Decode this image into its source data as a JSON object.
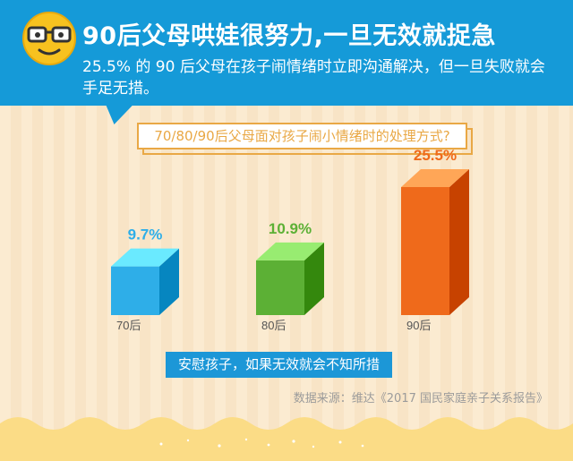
{
  "header": {
    "title": "90后父母哄娃很努力,一旦无效就捉急",
    "subtitle": "25.5% 的 90 后父母在孩子闹情绪时立即沟通解决，但一旦失败就会手足无措。"
  },
  "question": "70/80/90后父母面对孩子闹小情绪时的处理方式?",
  "caption": "安慰孩子，如果无效就会不知所措",
  "source": "数据来源：维达《2017 国民家庭亲子关系报告》",
  "colors": {
    "banner": "#159ad8",
    "accent": "#e9a845",
    "bar_70": "#2eaee8",
    "bar_80": "#5cb035",
    "bar_90": "#ef6a1b"
  },
  "chart_data": {
    "type": "bar",
    "categories": [
      "70后",
      "80后",
      "90后"
    ],
    "values": [
      9.7,
      10.9,
      25.5
    ],
    "value_labels": [
      "9.7%",
      "10.9%",
      "25.5%"
    ],
    "title": "70/80/90后父母面对孩子闹小情绪时的处理方式?",
    "xlabel": "",
    "ylabel": "",
    "ylim": [
      0,
      25.5
    ],
    "grid": false,
    "legend": "none"
  }
}
